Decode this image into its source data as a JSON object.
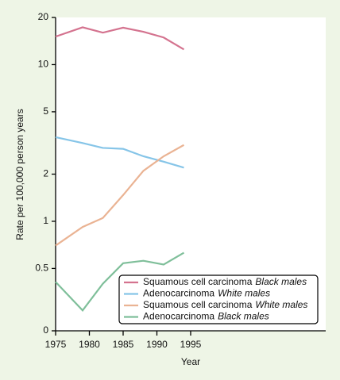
{
  "chart_data": {
    "type": "line",
    "x_label": "Year",
    "y_label": "Rate per 100,000 person years",
    "x": [
      1975,
      1979,
      1982,
      1985,
      1988,
      1991,
      1994
    ],
    "xlim": [
      1975,
      2015
    ],
    "xticks": [
      1975,
      1980,
      1985,
      1990,
      1995
    ],
    "ylim": [
      0.2,
      20
    ],
    "log_y": true,
    "yticks": [
      {
        "value": 0.2,
        "label": "0"
      },
      0.5,
      1,
      2,
      5,
      10,
      20
    ],
    "legend": "lower right",
    "series": [
      {
        "name": "Squamous cell carcinoma",
        "population": "Black males",
        "color": "#d4738f",
        "values": [
          15.1,
          17.3,
          16.0,
          17.2,
          16.2,
          14.9,
          12.5
        ]
      },
      {
        "name": "Adenocarcinoma",
        "population": "White males",
        "color": "#86c5e8",
        "values": [
          3.44,
          3.16,
          2.94,
          2.9,
          2.6,
          2.4,
          2.2
        ]
      },
      {
        "name": "Squamous cell carcinoma",
        "population": "White males",
        "color": "#eab393",
        "values": [
          0.7,
          0.92,
          1.05,
          1.47,
          2.1,
          2.6,
          3.07
        ]
      },
      {
        "name": "Adenocarcinoma",
        "population": "Black males",
        "color": "#7fbf9a",
        "values": [
          0.41,
          0.27,
          0.4,
          0.54,
          0.56,
          0.53,
          0.63
        ]
      }
    ]
  }
}
